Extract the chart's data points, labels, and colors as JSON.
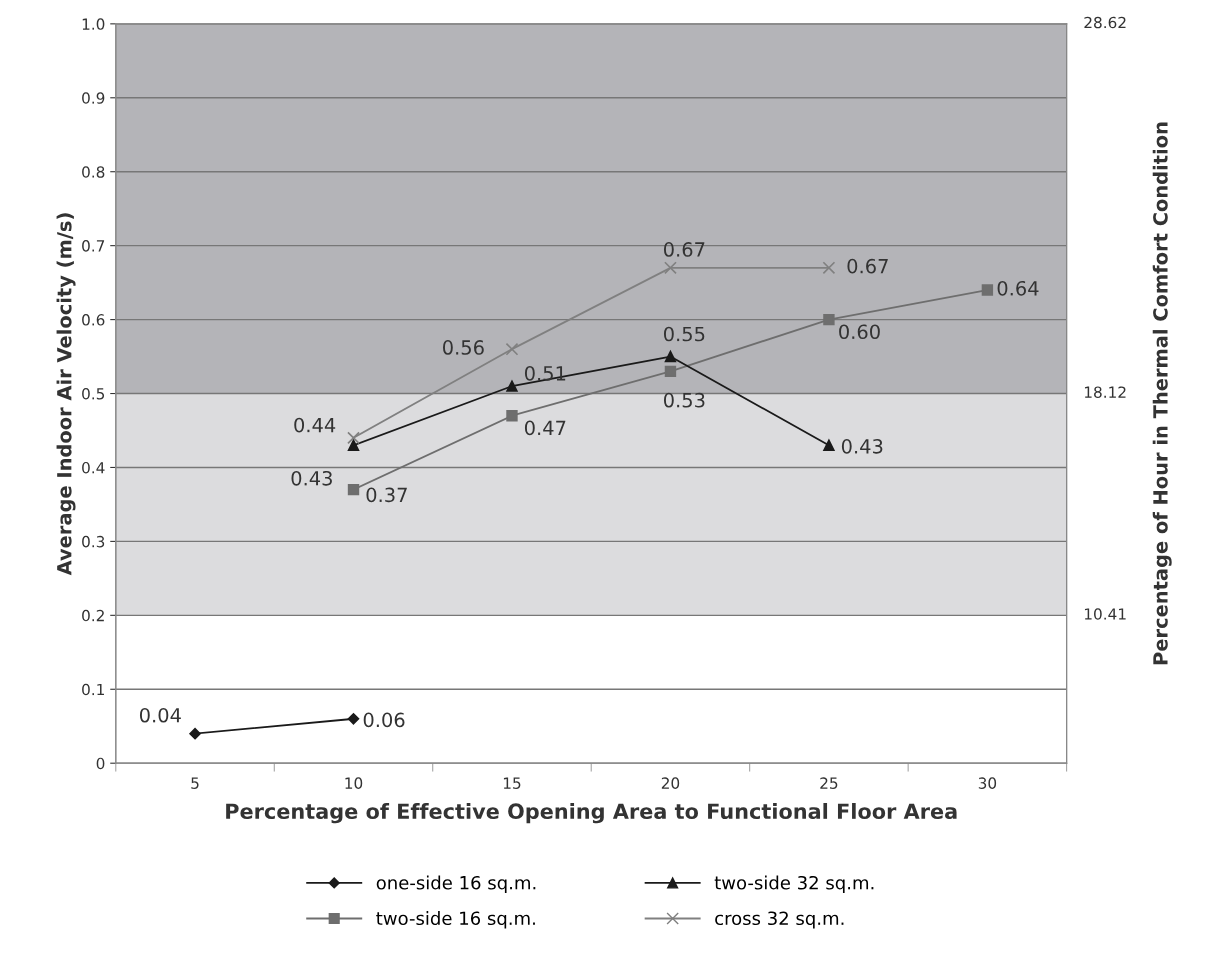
{
  "chart_data": {
    "type": "line",
    "xlabel": "Percentage of Effective Opening Area to Functional Floor Area",
    "ylabel": "Average Indoor Air Velocity (m/s)",
    "y2label": "Percentage of Hour in Thermal Comfort Condition",
    "categories": [
      "5",
      "10",
      "15",
      "20",
      "25",
      "30"
    ],
    "ylim": [
      0,
      1.0
    ],
    "yticks": [
      {
        "value": 0,
        "label": "0"
      },
      0.1,
      0.2,
      0.3,
      0.4,
      0.5,
      0.6,
      0.7,
      0.8,
      0.9,
      {
        "value": 1.0,
        "label": "1.0"
      }
    ],
    "annotations": [
      "10.41",
      "18.12",
      "28.62"
    ],
    "bands": [
      {
        "axis": "y",
        "from": 0.5,
        "to": 1.0,
        "color": "#b4b4b8"
      },
      {
        "axis": "y",
        "from": 0.2,
        "to": 0.5,
        "color": "#dcdcde"
      }
    ],
    "grid": "y",
    "legend": "bottom",
    "series": [
      {
        "name": "one-side 16 sq.m.",
        "color": "#1a1a1a",
        "marker": "diamond",
        "values": [
          0.04,
          0.06,
          null,
          null,
          null,
          null
        ],
        "value_labels": [
          "0.04",
          "0.06",
          null,
          null,
          null,
          null
        ]
      },
      {
        "name": "two-side 16 sq.m.",
        "color": "#6e6e6e",
        "marker": "square",
        "values": [
          null,
          0.37,
          0.47,
          0.53,
          0.6,
          0.64
        ],
        "value_labels": [
          null,
          "0.37",
          "0.47",
          "0.53",
          "0.60",
          "0.64"
        ]
      },
      {
        "name": "two-side 32 sq.m.",
        "color": "#1a1a1a",
        "marker": "triangle",
        "values": [
          null,
          0.43,
          0.51,
          0.55,
          0.43,
          null
        ],
        "value_labels": [
          null,
          "0.43",
          "0.51",
          "0.55",
          "0.43",
          null
        ]
      },
      {
        "name": "cross 32 sq.m.",
        "color": "#808080",
        "marker": "cross",
        "values": [
          null,
          0.44,
          0.56,
          0.67,
          0.67,
          null
        ],
        "value_labels": [
          null,
          "0.44",
          "0.56",
          "0.67",
          "0.67",
          null
        ]
      }
    ]
  }
}
